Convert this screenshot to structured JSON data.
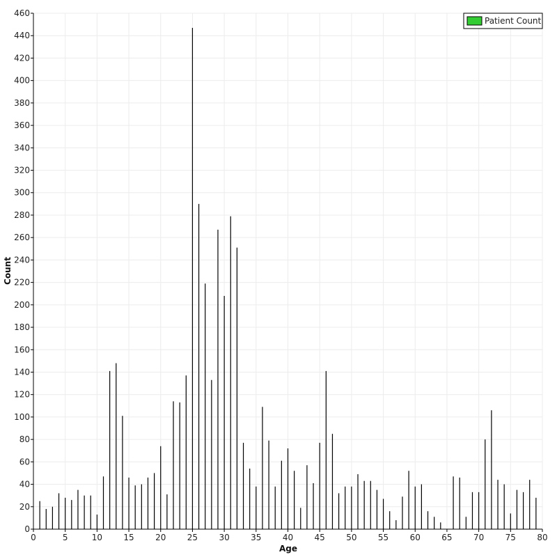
{
  "chart_data": {
    "type": "bar",
    "xlabel": "Age",
    "ylabel": "Count",
    "xlim": [
      0,
      80
    ],
    "ylim": [
      0,
      460
    ],
    "x_ticks": [
      0,
      5,
      10,
      15,
      20,
      25,
      30,
      35,
      40,
      45,
      50,
      55,
      60,
      65,
      70,
      75,
      80
    ],
    "y_ticks": [
      0,
      20,
      40,
      60,
      80,
      100,
      120,
      140,
      160,
      180,
      200,
      220,
      240,
      260,
      280,
      300,
      320,
      340,
      360,
      380,
      400,
      420,
      440,
      460
    ],
    "grid": true,
    "legend_position": "top-right",
    "series": [
      {
        "name": "Patient Count",
        "color": "#33cc33",
        "bar_color": "#000000",
        "x": [
          1,
          2,
          3,
          4,
          5,
          6,
          7,
          8,
          9,
          10,
          11,
          12,
          13,
          14,
          15,
          16,
          17,
          18,
          19,
          20,
          21,
          22,
          23,
          24,
          25,
          26,
          27,
          28,
          29,
          30,
          31,
          32,
          33,
          34,
          35,
          36,
          37,
          38,
          39,
          40,
          41,
          42,
          43,
          44,
          45,
          46,
          47,
          48,
          49,
          50,
          51,
          52,
          53,
          54,
          55,
          56,
          57,
          58,
          59,
          60,
          61,
          62,
          63,
          64,
          65,
          66,
          67,
          68,
          69,
          70,
          71,
          72,
          73,
          74,
          75,
          76,
          77,
          78,
          79
        ],
        "values": [
          25,
          18,
          20,
          32,
          28,
          26,
          35,
          30,
          30,
          13,
          47,
          141,
          148,
          101,
          46,
          39,
          40,
          46,
          50,
          74,
          31,
          114,
          113,
          137,
          447,
          290,
          219,
          133,
          267,
          208,
          279,
          251,
          77,
          54,
          38,
          109,
          79,
          38,
          61,
          72,
          52,
          19,
          57,
          41,
          77,
          141,
          85,
          32,
          38,
          38,
          49,
          43,
          43,
          35,
          27,
          16,
          8,
          29,
          52,
          38,
          40,
          16,
          11,
          6,
          0,
          47,
          46,
          11,
          33,
          33,
          80,
          106,
          44,
          40,
          14,
          35,
          33,
          44,
          28
        ]
      }
    ]
  }
}
